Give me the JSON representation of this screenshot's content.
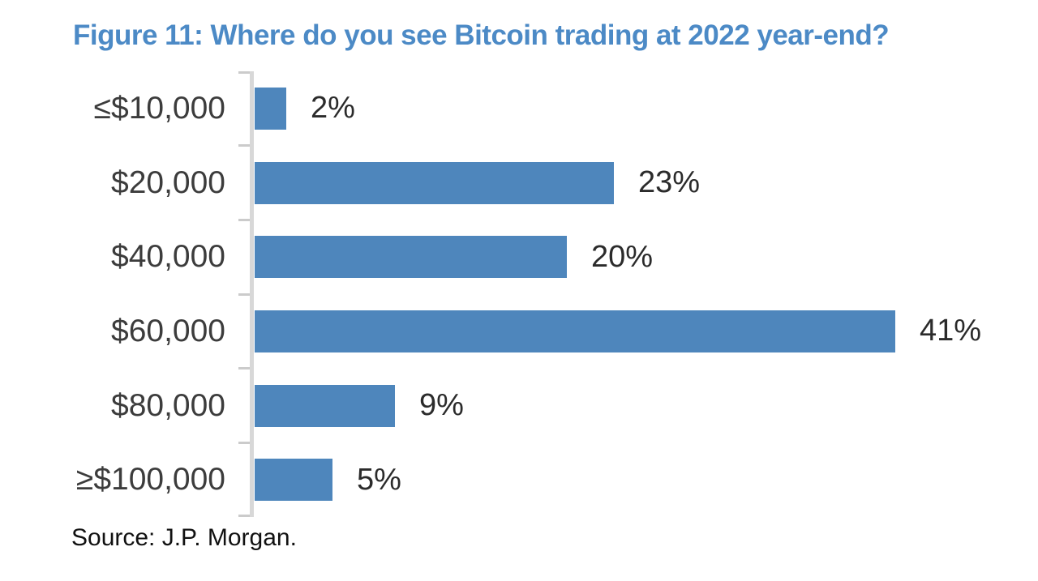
{
  "chart_data": {
    "type": "bar",
    "orientation": "horizontal",
    "title": "Figure 11: Where do you see Bitcoin trading at 2022 year-end?",
    "categories": [
      "≤$10,000",
      "$20,000",
      "$40,000",
      "$60,000",
      "$80,000",
      "≥$100,000"
    ],
    "values": [
      2,
      23,
      20,
      41,
      9,
      5
    ],
    "value_labels": [
      "2%",
      "23%",
      "20%",
      "41%",
      "9%",
      "5%"
    ],
    "unit": "%",
    "xlim": [
      0,
      41
    ],
    "grid": false,
    "legend": false,
    "source": "Source: J.P. Morgan.",
    "colors": {
      "bar": "#4E86BC",
      "title": "#4C8AC6",
      "axis": "#D8D8D8",
      "tick": "#CBCBCB",
      "category_text": "#3C3C3C",
      "value_text": "#2B2B2B",
      "source_text": "#111111"
    }
  }
}
